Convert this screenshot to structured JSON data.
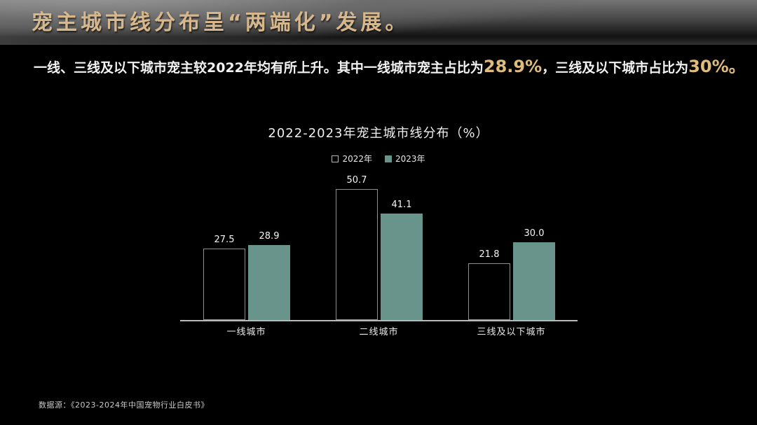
{
  "slide": {
    "title": "宠主城市线分布呈“两端化”发展。",
    "subtitle": {
      "part1": "一线、三线及以下城市宠主较2022年均有所上升。其中一线城市宠主占比为",
      "highlight1": "28.9%",
      "part2": "，三线及以下城市占比为",
      "highlight2": "30%。"
    },
    "source": "数据源：《2023-2024年中国宠物行业白皮书》"
  },
  "chart_data": {
    "type": "bar",
    "title": "2022-2023年宠主城市线分布（%）",
    "categories": [
      "一线城市",
      "二线城市",
      "三线及以下城市"
    ],
    "series": [
      {
        "name": "2022年",
        "values": [
          27.5,
          50.7,
          21.8
        ],
        "labels": [
          "27.5",
          "50.7",
          "21.8"
        ],
        "fill": "#000000",
        "border": "#8f8f8f"
      },
      {
        "name": "2023年",
        "values": [
          28.9,
          41.1,
          30.0
        ],
        "labels": [
          "28.9",
          "41.1",
          "30.0"
        ],
        "fill": "#68948c"
      }
    ],
    "ylim": [
      0,
      56
    ],
    "grid": false,
    "legend_position": "top",
    "value_labels": true
  },
  "colors": {
    "background": "#000000",
    "title_gold": "#d7b78c",
    "highlight_gold": "#dfbc7c",
    "bar_2023_teal": "#68948c",
    "bar_2022_outline": "#8f8f8f",
    "axis": "#b9b9b9",
    "text_white": "#f2f2f2"
  }
}
